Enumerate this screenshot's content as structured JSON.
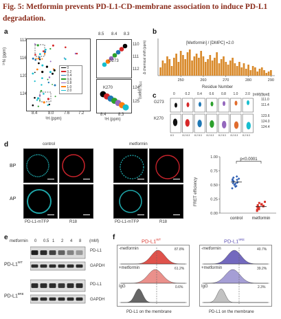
{
  "figure": {
    "title": "Fig. 5: Metformin prevents PD-L1-CD-membrane association to induce PD-L1 degradation."
  },
  "panel_labels": [
    "a",
    "b",
    "c",
    "d",
    "e",
    "f"
  ],
  "panel_a": {
    "y_label": "¹⁵N (ppm)",
    "x_label": "¹H (ppm)",
    "x_ticks": [
      "8.4",
      "8.0",
      "7.6",
      "7.2"
    ],
    "y_ticks": [
      "112",
      "116",
      "120",
      "124"
    ],
    "legend_values": [
      "0",
      "0.2",
      "0.4",
      "0.6",
      "0.8",
      "1.0",
      "2.0"
    ],
    "legend_colors": [
      "#000000",
      "#d62728",
      "#1f77b4",
      "#2ca02c",
      "#9467bd",
      "#ff7f0e",
      "#17becf"
    ],
    "zoom_x_ticks": [
      "8.5",
      "8.4",
      "8.3"
    ],
    "zoom_top_y_ticks": [
      "110",
      "111",
      "112"
    ],
    "zoom_bottom_y_ticks": [
      "124",
      "125"
    ],
    "zoom_x_bottom_ticks": [
      "8.4",
      "8.3"
    ],
    "zoom_x_label": "¹H (ppm)",
    "zoom_y_label": "¹⁵N (ppm)",
    "zoom_label_top": "G273",
    "zoom_label_bottom": "K270"
  },
  "panel_b": {
    "annotation": "[Metformin] / [DMPC] =2.0",
    "y_label": "Δ chemical shift (ppm)",
    "x_label": "Residue Number",
    "x_ticks": [
      "250",
      "260",
      "270",
      "280",
      "290"
    ],
    "bar_color": "#d98a2b",
    "chart_data": {
      "type": "bar",
      "x": [
        241,
        242,
        243,
        244,
        245,
        246,
        247,
        248,
        249,
        250,
        251,
        252,
        253,
        254,
        255,
        256,
        257,
        258,
        259,
        260,
        261,
        262,
        263,
        264,
        265,
        266,
        267,
        268,
        269,
        270,
        271,
        272,
        273,
        274,
        275,
        276,
        277,
        278,
        279,
        280,
        281,
        282,
        283,
        284,
        285,
        286,
        287,
        288,
        289,
        290
      ],
      "values": [
        0.3,
        0.55,
        0.45,
        0.7,
        0.6,
        0.35,
        0.65,
        0.8,
        0.5,
        0.9,
        0.75,
        0.6,
        0.85,
        0.95,
        0.55,
        0.7,
        0.8,
        0.65,
        0.9,
        0.7,
        0.5,
        0.6,
        0.75,
        0.55,
        0.65,
        0.85,
        0.45,
        0.6,
        0.7,
        0.5,
        0.4,
        0.55,
        0.65,
        0.45,
        0.35,
        0.5,
        0.3,
        0.45,
        0.25,
        0.4,
        0.2,
        0.35,
        0.3,
        0.15,
        0.25,
        0.3,
        0.2,
        0.1,
        0.15,
        0.2
      ],
      "xlabel": "Residue Number",
      "ylabel": "Δ chemical shift (ppm)"
    }
  },
  "panel_c": {
    "header_values": [
      "0",
      "0.2",
      "0.4",
      "0.6",
      "0.8",
      "1.0",
      "2.0"
    ],
    "header_unit": "[mM]/[lipid]",
    "row_labels": [
      "G273",
      "K270"
    ],
    "g273_ppm": [
      "111.0",
      "111.4"
    ],
    "k270_ppm": [
      "123.6",
      "124.0",
      "124.4"
    ],
    "bottom_ticks": [
      "8.3",
      "8.2 8.3",
      "8.2 8.3",
      "8.2 8.3",
      "8.2 8.3",
      "8.2 8.3",
      "8.2 8.3"
    ],
    "peak_colors": [
      "#111111",
      "#d62728",
      "#1f77b4",
      "#2ca02c",
      "#9467bd",
      "#e06c2d",
      "#17becf"
    ]
  },
  "panel_d": {
    "col_control": "control",
    "col_metformin": "metformin",
    "row_bp": "BP",
    "row_ap": "AP",
    "label_mtfp_1": "PD-L1-mTFP",
    "label_r18_1": "R18",
    "label_mtfp_2": "PD-L1-mTFP",
    "label_r18_2": "R18",
    "chart_data": {
      "type": "scatter",
      "categories": [
        "control",
        "metformin"
      ],
      "ylabel": "FRET efficiency",
      "ylim": [
        0,
        1.0
      ],
      "y_ticks": [
        "0.00",
        "0.25",
        "0.50",
        "0.75",
        "1.00"
      ],
      "annotation": "p<0.0001",
      "control": [
        0.44,
        0.47,
        0.5,
        0.52,
        0.54,
        0.55,
        0.57,
        0.58,
        0.6,
        0.61,
        0.63,
        0.65,
        0.48,
        0.53,
        0.56,
        0.59
      ],
      "metformin": [
        0.04,
        0.06,
        0.08,
        0.09,
        0.1,
        0.11,
        0.12,
        0.13,
        0.15,
        0.16,
        0.18,
        0.2,
        0.07,
        0.14
      ],
      "control_color": "#2f5fb3",
      "metformin_color": "#d9342b"
    }
  },
  "panel_e": {
    "header": "metformin",
    "concentrations": [
      "0",
      "0.5",
      "1",
      "2",
      "4",
      "8"
    ],
    "unit": "(mM)",
    "row_label_wt": "PD-L1",
    "row_label_wt_sup": "WT",
    "row_label_mut": "PD-L1",
    "row_label_mut_sup": "9RE",
    "band_labels": [
      "PD-L1",
      "GAPDH",
      "PD-L1",
      "GAPDH"
    ],
    "wt_pdl1_intensity": [
      0.9,
      0.85,
      0.75,
      0.6,
      0.45,
      0.35
    ],
    "wt_gapdh_intensity": [
      0.85,
      0.85,
      0.85,
      0.85,
      0.85,
      0.85
    ],
    "mut_pdl1_intensity": [
      0.85,
      0.85,
      0.85,
      0.8,
      0.85,
      0.85
    ],
    "mut_gapdh_intensity": [
      0.85,
      0.85,
      0.85,
      0.85,
      0.85,
      0.85
    ]
  },
  "panel_f": {
    "left_title": "PD-L1",
    "left_title_sup": "WT",
    "right_title": "PD-L1",
    "right_title_sup": "9RE",
    "left_color": "#d9342b",
    "right_color": "#5b4fb3",
    "row_labels": [
      "-metformin",
      "+metformin",
      "IgG"
    ],
    "left_percent": [
      "87.8%",
      "61.2%",
      "0.6%"
    ],
    "right_percent": [
      "40.7%",
      "39.2%",
      "2.3%"
    ],
    "x_label": "PD-L1 on the membrane"
  }
}
